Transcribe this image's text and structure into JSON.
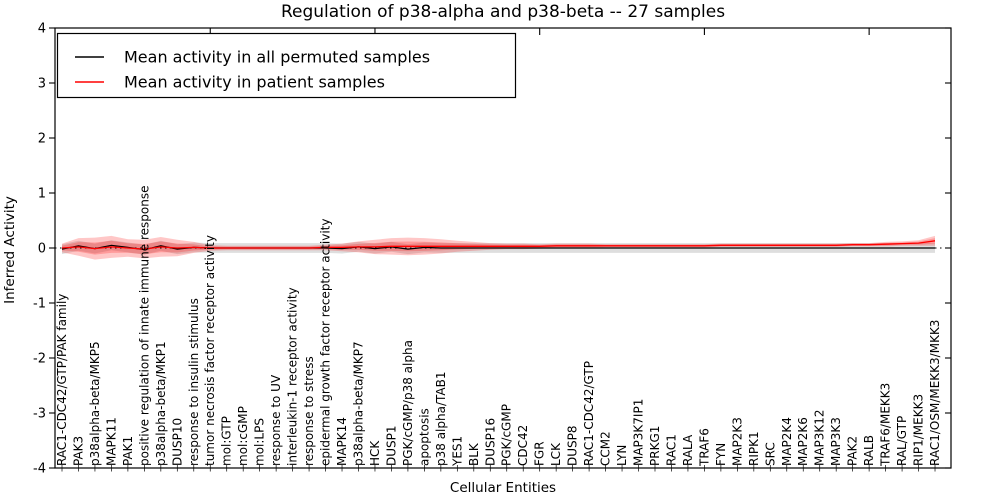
{
  "chart_data": {
    "type": "line",
    "title": "Regulation of p38-alpha and p38-beta -- 27 samples",
    "xlabel": "Cellular Entities",
    "ylabel": "Inferred Activity",
    "ylim": [
      -4,
      4
    ],
    "yticks": [
      "4",
      "3",
      "2",
      "1",
      "0",
      "-1",
      "-2",
      "-3",
      "-4"
    ],
    "ytick_values": [
      4,
      3,
      2,
      1,
      0,
      -1,
      -2,
      -3,
      -4
    ],
    "grid": false,
    "zero_line": "dotted",
    "legend_position": "upper left",
    "categories": [
      "RAC1-CDC42/GTP/PAK family",
      "PAK3",
      "p38alpha-beta/MKP5",
      "MAPK11",
      "PAK1",
      "positive regulation of innate immune response",
      "p38alpha-beta/MKP1",
      "DUSP10",
      "response to insulin stimulus",
      "tumor necrosis factor receptor activity",
      "mol:GTP",
      "mol:cGMP",
      "mol:LPS",
      "response to UV",
      "interleukin-1 receptor activity",
      "response to stress",
      "epidermal growth factor receptor activity",
      "MAPK14",
      "p38alpha-beta/MKP7",
      "HCK",
      "DUSP1",
      "PGK/cGMP/p38 alpha",
      "apoptosis",
      "p38 alpha/TAB1",
      "YES1",
      "BLK",
      "DUSP16",
      "PGK/cGMP",
      "CDC42",
      "FGR",
      "LCK",
      "DUSP8",
      "RAC1-CDC42/GTP",
      "CCM2",
      "LYN",
      "MAP3K7IP1",
      "PRKG1",
      "RAC1",
      "RALA",
      "TRAF6",
      "FYN",
      "MAP2K3",
      "RIPK1",
      "SRC",
      "MAP2K4",
      "MAP2K6",
      "MAP3K12",
      "MAP3K3",
      "PAK2",
      "RALB",
      "TRAF6/MEKK3",
      "RAL/GTP",
      "RIP1/MEKK3",
      "RAC1/OSM/MEKK3/MKK3"
    ],
    "series": [
      {
        "name": "Mean activity in all permuted samples",
        "color": "#000000",
        "values": [
          -0.02,
          0.04,
          -0.01,
          0.05,
          0.01,
          -0.03,
          0.04,
          -0.02,
          0.01,
          0.0,
          0.0,
          0.0,
          0.0,
          0.0,
          0.0,
          0.0,
          0.0,
          -0.01,
          0.02,
          -0.01,
          0.02,
          -0.02,
          0.01,
          0.0,
          0.0,
          0.0,
          0.0,
          0.0,
          0.0,
          0.0,
          0.0,
          0.0,
          0.0,
          0.0,
          0.0,
          0.0,
          0.0,
          0.0,
          0.0,
          0.0,
          0.0,
          0.0,
          0.0,
          0.0,
          0.0,
          0.0,
          0.0,
          0.0,
          0.0,
          0.0,
          0.0,
          0.0,
          0.0,
          0.0
        ],
        "std_values": [
          0.09,
          0.09,
          0.09,
          0.09,
          0.09,
          0.09,
          0.09,
          0.09,
          0.09,
          0.09,
          0.09,
          0.09,
          0.09,
          0.09,
          0.09,
          0.09,
          0.09,
          0.09,
          0.09,
          0.09,
          0.09,
          0.09,
          0.09,
          0.09,
          0.09,
          0.09,
          0.09,
          0.09,
          0.09,
          0.09,
          0.09,
          0.09,
          0.09,
          0.09,
          0.09,
          0.09,
          0.09,
          0.09,
          0.09,
          0.09,
          0.09,
          0.09,
          0.09,
          0.09,
          0.09,
          0.09,
          0.09,
          0.09,
          0.09,
          0.09,
          0.09,
          0.09,
          0.09,
          0.09
        ]
      },
      {
        "name": "Mean activity in patient samples",
        "color": "#ff0000",
        "values": [
          0.0,
          0.02,
          -0.01,
          0.02,
          0.0,
          -0.02,
          0.02,
          0.0,
          0.01,
          0.0,
          0.0,
          0.0,
          0.0,
          0.0,
          0.0,
          0.0,
          0.01,
          0.01,
          0.02,
          0.02,
          0.03,
          0.03,
          0.03,
          0.03,
          0.03,
          0.03,
          0.03,
          0.03,
          0.03,
          0.03,
          0.04,
          0.04,
          0.04,
          0.04,
          0.04,
          0.04,
          0.04,
          0.04,
          0.04,
          0.04,
          0.05,
          0.05,
          0.05,
          0.05,
          0.05,
          0.05,
          0.05,
          0.05,
          0.06,
          0.06,
          0.07,
          0.08,
          0.09,
          0.13
        ],
        "std_values": [
          0.08,
          0.16,
          0.2,
          0.2,
          0.16,
          0.17,
          0.18,
          0.15,
          0.1,
          0.05,
          0.04,
          0.04,
          0.04,
          0.04,
          0.04,
          0.04,
          0.05,
          0.07,
          0.1,
          0.13,
          0.15,
          0.16,
          0.15,
          0.13,
          0.1,
          0.08,
          0.06,
          0.05,
          0.05,
          0.04,
          0.04,
          0.04,
          0.04,
          0.03,
          0.03,
          0.03,
          0.03,
          0.03,
          0.03,
          0.03,
          0.03,
          0.03,
          0.03,
          0.03,
          0.03,
          0.03,
          0.03,
          0.03,
          0.03,
          0.03,
          0.04,
          0.04,
          0.05,
          0.09
        ]
      }
    ],
    "styles": {
      "permuted_band_fill": "rgba(0,0,0,0.13)",
      "patient_band_fill": "rgba(255,0,0,0.22)",
      "axis_color": "#000000",
      "background": "#ffffff"
    }
  }
}
